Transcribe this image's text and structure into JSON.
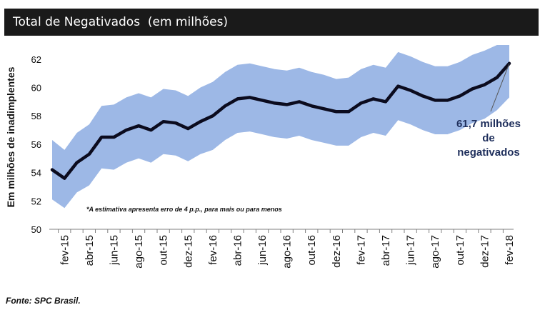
{
  "header": {
    "title": "Total de Negativados  (em milhões)"
  },
  "source": "Fonte: SPC Brasil.",
  "colors": {
    "band": "#9db8e6",
    "line": "#0b0b1e",
    "header_bg": "#1a1a1a",
    "callout_text": "#1f2f5c"
  },
  "chart_data": {
    "type": "line",
    "title": "Total de Negativados  (em milhões)",
    "ylabel": "Em milhões de inadimplentes",
    "xlabel": "",
    "ylim": [
      50,
      63
    ],
    "yticks": [
      50,
      52,
      54,
      56,
      58,
      60,
      62
    ],
    "grid": false,
    "legend": "none",
    "categories": [
      "jan-15",
      "fev-15",
      "mar-15",
      "abr-15",
      "mai-15",
      "jun-15",
      "jul-15",
      "ago-15",
      "set-15",
      "out-15",
      "nov-15",
      "dez-15",
      "jan-16",
      "fev-16",
      "mar-16",
      "abr-16",
      "mai-16",
      "jun-16",
      "jul-16",
      "ago-16",
      "set-16",
      "out-16",
      "nov-16",
      "dez-16",
      "jan-17",
      "fev-17",
      "mar-17",
      "abr-17",
      "mai-17",
      "jun-17",
      "jul-17",
      "ago-17",
      "set-17",
      "out-17",
      "nov-17",
      "dez-17",
      "jan-18",
      "fev-18"
    ],
    "tick_labels": [
      "fev-15",
      "abr-15",
      "jun-15",
      "ago-15",
      "out-15",
      "dez-15",
      "fev-16",
      "abr-16",
      "jun-16",
      "ago-16",
      "out-16",
      "dez-16",
      "fev-17",
      "abr-17",
      "jun-17",
      "ago-17",
      "out-17",
      "dez-17",
      "fev-18"
    ],
    "series": [
      {
        "role": "estimate",
        "values": [
          54.2,
          53.6,
          54.7,
          55.3,
          56.5,
          56.5,
          57.0,
          57.3,
          57.0,
          57.6,
          57.5,
          57.1,
          57.6,
          58.0,
          58.7,
          59.2,
          59.3,
          59.1,
          58.9,
          58.8,
          59.0,
          58.7,
          58.5,
          58.3,
          58.3,
          58.9,
          59.2,
          59.0,
          60.1,
          59.8,
          59.4,
          59.1,
          59.1,
          59.4,
          59.9,
          60.2,
          60.7,
          61.7
        ]
      },
      {
        "role": "upper",
        "values": [
          56.3,
          55.6,
          56.8,
          57.4,
          58.7,
          58.8,
          59.3,
          59.6,
          59.3,
          59.9,
          59.8,
          59.4,
          60.0,
          60.4,
          61.1,
          61.6,
          61.7,
          61.5,
          61.3,
          61.2,
          61.4,
          61.1,
          60.9,
          60.6,
          60.7,
          61.3,
          61.6,
          61.4,
          62.5,
          62.2,
          61.8,
          61.5,
          61.5,
          61.8,
          62.3,
          62.6,
          63.0,
          63.0
        ]
      },
      {
        "role": "lower",
        "values": [
          52.1,
          51.5,
          52.6,
          53.1,
          54.3,
          54.2,
          54.7,
          55.0,
          54.7,
          55.3,
          55.2,
          54.8,
          55.3,
          55.6,
          56.3,
          56.8,
          56.9,
          56.7,
          56.5,
          56.4,
          56.6,
          56.3,
          56.1,
          55.9,
          55.9,
          56.5,
          56.8,
          56.6,
          57.7,
          57.4,
          57.0,
          56.7,
          56.7,
          57.0,
          57.5,
          57.8,
          58.4,
          59.3
        ]
      }
    ],
    "annotations": {
      "error_note": "*A estimativa apresenta erro de 4 p.p., para mais ou para menos",
      "callout_lines": [
        "61,7 milhões",
        "de",
        "negativados"
      ]
    }
  }
}
